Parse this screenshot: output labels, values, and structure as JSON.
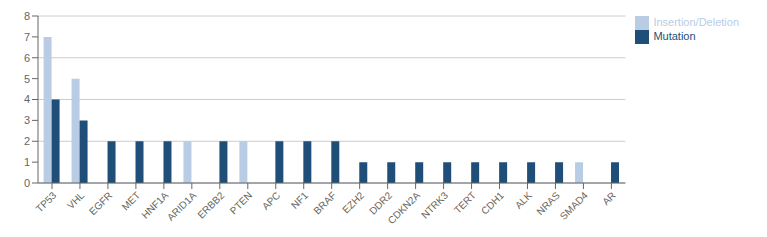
{
  "chart_data": {
    "type": "bar",
    "categories": [
      "TP53",
      "VHL",
      "EGFR",
      "MET",
      "HNF1A",
      "ARID1A",
      "ERBB2",
      "PTEN",
      "APC",
      "NF1",
      "BRAF",
      "EZH2",
      "DDR2",
      "CDKN2A",
      "NTRK3",
      "TERT",
      "CDH1",
      "ALK",
      "NRAS",
      "SMAD4",
      "AR"
    ],
    "series": [
      {
        "name": "Insertion/Deletion",
        "color": "#b8cce4",
        "values": [
          7,
          5,
          0,
          0,
          0,
          2,
          0,
          2,
          0,
          0,
          0,
          0,
          0,
          0,
          0,
          0,
          0,
          0,
          0,
          1,
          0
        ]
      },
      {
        "name": "Mutation",
        "color": "#1f4e79",
        "values": [
          4,
          3,
          2,
          2,
          2,
          0,
          2,
          0,
          2,
          2,
          2,
          1,
          1,
          1,
          1,
          1,
          1,
          1,
          1,
          0,
          1
        ]
      }
    ],
    "ylim": [
      0,
      8
    ],
    "yticks": [
      0,
      1,
      2,
      3,
      4,
      5,
      6,
      7,
      8
    ],
    "grid": true,
    "legend": "upper right"
  }
}
